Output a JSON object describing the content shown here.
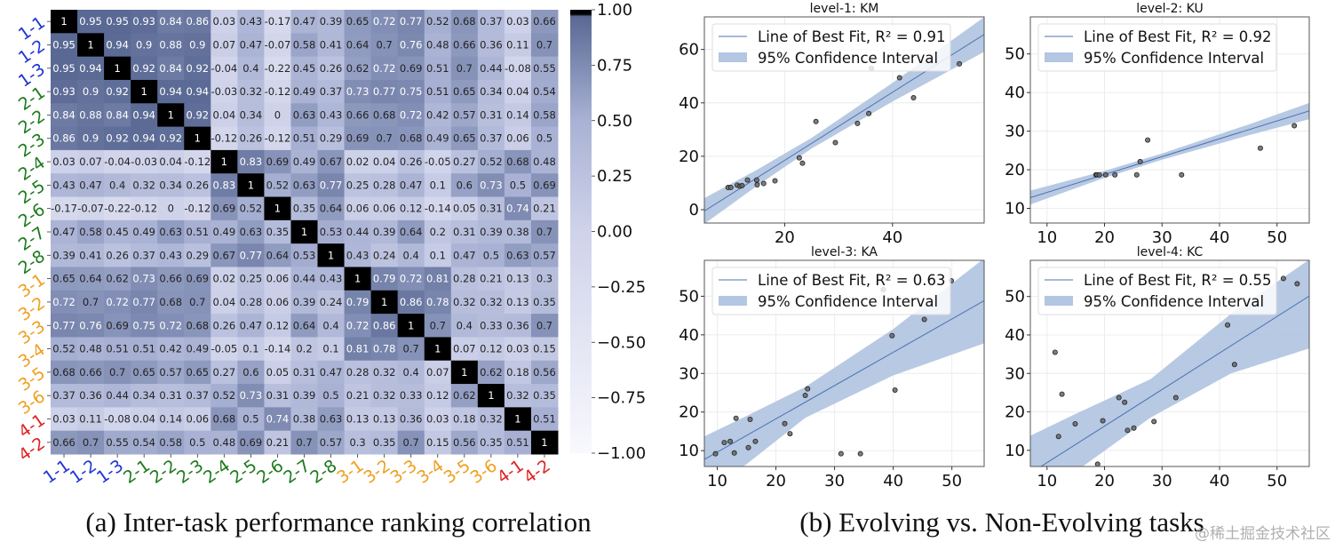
{
  "captions": {
    "a": "(a) Inter-task performance ranking correlation",
    "b": "(b) Evolving vs. Non-Evolving tasks"
  },
  "watermark": "@稀土掘金技术社区",
  "chart_data": [
    {
      "type": "heatmap",
      "labels": [
        "1-1",
        "1-2",
        "1-3",
        "2-1",
        "2-2",
        "2-3",
        "2-4",
        "2-5",
        "2-6",
        "2-7",
        "2-8",
        "3-1",
        "3-2",
        "3-3",
        "3-4",
        "3-5",
        "3-6",
        "4-1",
        "4-2"
      ],
      "label_colors": {
        "1": "#1f35d6",
        "2": "#1e7a1e",
        "3": "#f0a020",
        "4": "#e02424"
      },
      "colorbar": {
        "range": [
          -1,
          1
        ],
        "ticks": [
          "1.00",
          "0.75",
          "0.50",
          "0.25",
          "0.00",
          "−0.25",
          "−0.50",
          "−0.75",
          "−1.00"
        ],
        "tick_values": [
          1,
          0.75,
          0.5,
          0.25,
          0,
          -0.25,
          -0.5,
          -0.75,
          -1
        ]
      },
      "colors": {
        "low": "#f8f8fd",
        "mid": "#cfd3ea",
        "high": "#5a6994",
        "diagonal": "#000000"
      },
      "values": [
        [
          1,
          0.95,
          0.95,
          0.93,
          0.84,
          0.86,
          0.03,
          0.43,
          -0.17,
          0.47,
          0.39,
          0.65,
          0.72,
          0.77,
          0.52,
          0.68,
          0.37,
          0.03,
          0.66
        ],
        [
          0.95,
          1,
          0.94,
          0.9,
          0.88,
          0.9,
          0.07,
          0.47,
          -0.07,
          0.58,
          0.41,
          0.64,
          0.7,
          0.76,
          0.48,
          0.66,
          0.36,
          0.11,
          0.7
        ],
        [
          0.95,
          0.94,
          1,
          0.92,
          0.84,
          0.92,
          -0.04,
          0.4,
          -0.22,
          0.45,
          0.26,
          0.62,
          0.72,
          0.69,
          0.51,
          0.7,
          0.44,
          -0.08,
          0.55
        ],
        [
          0.93,
          0.9,
          0.92,
          1,
          0.94,
          0.94,
          -0.03,
          0.32,
          -0.12,
          0.49,
          0.37,
          0.73,
          0.77,
          0.75,
          0.51,
          0.65,
          0.34,
          0.04,
          0.54
        ],
        [
          0.84,
          0.88,
          0.84,
          0.94,
          1,
          0.92,
          0.04,
          0.34,
          0,
          0.63,
          0.43,
          0.66,
          0.68,
          0.72,
          0.42,
          0.57,
          0.31,
          0.14,
          0.58
        ],
        [
          0.86,
          0.9,
          0.92,
          0.94,
          0.92,
          1,
          -0.12,
          0.26,
          -0.12,
          0.51,
          0.29,
          0.69,
          0.7,
          0.68,
          0.49,
          0.65,
          0.37,
          0.06,
          0.5
        ],
        [
          0.03,
          0.07,
          -0.04,
          -0.03,
          0.04,
          -0.12,
          1,
          0.83,
          0.69,
          0.49,
          0.67,
          0.02,
          0.04,
          0.26,
          -0.05,
          0.27,
          0.52,
          0.68,
          0.48
        ],
        [
          0.43,
          0.47,
          0.4,
          0.32,
          0.34,
          0.26,
          0.83,
          1,
          0.52,
          0.63,
          0.77,
          0.25,
          0.28,
          0.47,
          0.1,
          0.6,
          0.73,
          0.5,
          0.69
        ],
        [
          -0.17,
          -0.07,
          -0.22,
          -0.12,
          0,
          -0.12,
          0.69,
          0.52,
          1,
          0.35,
          0.64,
          0.06,
          0.06,
          0.12,
          -0.14,
          0.05,
          0.31,
          0.74,
          0.21
        ],
        [
          0.47,
          0.58,
          0.45,
          0.49,
          0.63,
          0.51,
          0.49,
          0.63,
          0.35,
          1,
          0.53,
          0.44,
          0.39,
          0.64,
          0.2,
          0.31,
          0.39,
          0.38,
          0.7
        ],
        [
          0.39,
          0.41,
          0.26,
          0.37,
          0.43,
          0.29,
          0.67,
          0.77,
          0.64,
          0.53,
          1,
          0.43,
          0.24,
          0.4,
          0.1,
          0.47,
          0.5,
          0.63,
          0.57
        ],
        [
          0.65,
          0.64,
          0.62,
          0.73,
          0.66,
          0.69,
          0.02,
          0.25,
          0.06,
          0.44,
          0.43,
          1,
          0.79,
          0.72,
          0.81,
          0.28,
          0.21,
          0.13,
          0.3
        ],
        [
          0.72,
          0.7,
          0.72,
          0.77,
          0.68,
          0.7,
          0.04,
          0.28,
          0.06,
          0.39,
          0.24,
          0.79,
          1,
          0.86,
          0.78,
          0.32,
          0.32,
          0.13,
          0.35
        ],
        [
          0.77,
          0.76,
          0.69,
          0.75,
          0.72,
          0.68,
          0.26,
          0.47,
          0.12,
          0.64,
          0.4,
          0.72,
          0.86,
          1,
          0.7,
          0.4,
          0.33,
          0.36,
          0.7
        ],
        [
          0.52,
          0.48,
          0.51,
          0.51,
          0.42,
          0.49,
          -0.05,
          0.1,
          -0.14,
          0.2,
          0.1,
          0.81,
          0.78,
          0.7,
          1,
          0.07,
          0.12,
          0.03,
          0.15
        ],
        [
          0.68,
          0.66,
          0.7,
          0.65,
          0.57,
          0.65,
          0.27,
          0.6,
          0.05,
          0.31,
          0.47,
          0.28,
          0.32,
          0.4,
          0.07,
          1,
          0.62,
          0.18,
          0.56
        ],
        [
          0.37,
          0.36,
          0.44,
          0.34,
          0.31,
          0.37,
          0.52,
          0.73,
          0.31,
          0.39,
          0.5,
          0.21,
          0.32,
          0.33,
          0.12,
          0.62,
          1,
          0.32,
          0.35
        ],
        [
          0.03,
          0.11,
          -0.08,
          0.04,
          0.14,
          0.06,
          0.68,
          0.5,
          0.74,
          0.38,
          0.63,
          0.13,
          0.13,
          0.36,
          0.03,
          0.18,
          0.32,
          1,
          0.51
        ],
        [
          0.66,
          0.7,
          0.55,
          0.54,
          0.58,
          0.5,
          0.48,
          0.69,
          0.21,
          0.7,
          0.57,
          0.3,
          0.35,
          0.7,
          0.15,
          0.56,
          0.35,
          0.51,
          1
        ]
      ]
    },
    {
      "type": "scatter",
      "title": "level-1: KM",
      "xlim": [
        5.1,
        57.0
      ],
      "ylim": [
        -5.0,
        72.2
      ],
      "xticks": [
        20,
        40
      ],
      "yticks": [
        0,
        20,
        40,
        60
      ],
      "grid": true,
      "legend": {
        "placement": "top-left",
        "line_label": "Line of Best Fit, R² = 0.91",
        "band_label": "95% Confidence Interval"
      },
      "r2": 0.91,
      "fit": {
        "slope": 1.274,
        "intercept": -7.0
      },
      "ci": {
        "x": [
          5.1,
          15,
          25,
          40,
          57
        ],
        "lower": [
          -5.3,
          9.1,
          22.9,
          40.5,
          59.1
        ],
        "upper": [
          4.3,
          15.1,
          26.9,
          47.5,
          72.1
        ]
      },
      "x": [
        9.5,
        10.0,
        11.2,
        11.7,
        12.1,
        13.1,
        14.8,
        14.9,
        16.1,
        18.2,
        22.7,
        23.3,
        25.8,
        29.4,
        33.5,
        35.6,
        36.1,
        41.3,
        43.9,
        52.4
      ],
      "y": [
        8.3,
        8.3,
        9.2,
        8.8,
        9.0,
        11.1,
        11.1,
        9.3,
        9.8,
        10.8,
        19.4,
        17.4,
        33.0,
        25.1,
        32.3,
        36.0,
        52.9,
        49.4,
        41.9,
        54.6
      ]
    },
    {
      "type": "scatter",
      "title": "level-2: KU",
      "xlim": [
        7.1,
        55.6
      ],
      "ylim": [
        6.2,
        59.6
      ],
      "xticks": [
        10,
        20,
        30,
        40,
        50
      ],
      "yticks": [
        10,
        20,
        30,
        40,
        50
      ],
      "grid": true,
      "legend": {
        "placement": "top-left",
        "line_label": "Line of Best Fit, R² = 0.92",
        "band_label": "95% Confidence Interval"
      },
      "r2": 0.92,
      "fit": {
        "slope": 0.463,
        "intercept": 9.5
      },
      "ci": {
        "x": [
          7.1,
          20,
          30,
          45,
          55.6
        ],
        "lower": [
          11.0,
          17.9,
          22.6,
          28.9,
          33.1
        ],
        "upper": [
          14.6,
          19.7,
          24.2,
          31.7,
          37.3
        ]
      },
      "x": [
        18.5,
        18.7,
        19.1,
        20.2,
        21.8,
        25.6,
        26.2,
        27.5,
        33.4,
        47.1,
        53.0
      ],
      "y": [
        18.7,
        18.7,
        18.7,
        18.7,
        18.7,
        18.7,
        22.1,
        27.7,
        18.7,
        25.6,
        31.4
      ]
    },
    {
      "type": "scatter",
      "title": "level-3: KA",
      "xlim": [
        7.8,
        55.5
      ],
      "ylim": [
        5.9,
        59.3
      ],
      "xticks": [
        10,
        20,
        30,
        40,
        50
      ],
      "yticks": [
        10,
        20,
        30,
        40,
        50
      ],
      "grid": true,
      "legend": {
        "placement": "top-left",
        "line_label": "Line of Best Fit, R² = 0.63",
        "band_label": "95% Confidence Interval"
      },
      "r2": 0.63,
      "fit": {
        "slope": 0.862,
        "intercept": 1.0
      },
      "ci": {
        "x": [
          7.8,
          15,
          25,
          40,
          55.5
        ],
        "lower": [
          -0.5,
          6.5,
          18.5,
          29.5,
          37.8
        ],
        "upper": [
          13.7,
          19.0,
          26.5,
          41.5,
          59.8
        ]
      },
      "x": [
        9.7,
        11.2,
        12.2,
        12.9,
        13.2,
        15.3,
        15.6,
        16.5,
        21.5,
        22.4,
        25.0,
        25.4,
        31.1,
        34.4,
        38.3,
        39.8,
        40.3,
        45.3,
        49.9
      ],
      "y": [
        9.2,
        12.1,
        12.4,
        9.4,
        18.4,
        10.8,
        18.1,
        12.4,
        17.0,
        14.4,
        24.3,
        26.0,
        9.2,
        9.2,
        51.7,
        39.8,
        25.7,
        44.0,
        54.0
      ]
    },
    {
      "type": "scatter",
      "title": "level-4: KC",
      "xlim": [
        7.1,
        55.6
      ],
      "ylim": [
        5.8,
        59.4
      ],
      "xticks": [
        10,
        20,
        30,
        40,
        50
      ],
      "yticks": [
        10,
        20,
        30,
        40,
        50
      ],
      "grid": true,
      "legend": {
        "placement": "top-left",
        "line_label": "Line of Best Fit, R² = 0.55",
        "band_label": "95% Confidence Interval"
      },
      "r2": 0.55,
      "fit": {
        "slope": 0.95,
        "intercept": -2.7
      },
      "ci": {
        "x": [
          7.1,
          15,
          28,
          42,
          55.6
        ],
        "lower": [
          -5.0,
          4.5,
          18.5,
          30.0,
          36.5
        ],
        "upper": [
          13.8,
          19.5,
          28.5,
          45.5,
          59.6
        ]
      },
      "x": [
        11.4,
        12.0,
        12.6,
        14.9,
        18.8,
        19.7,
        22.5,
        23.5,
        24.0,
        25.1,
        28.6,
        32.4,
        41.4,
        42.6,
        51.1,
        53.5
      ],
      "y": [
        35.5,
        13.6,
        24.6,
        16.9,
        6.4,
        17.7,
        23.7,
        22.5,
        15.2,
        15.8,
        17.5,
        23.7,
        42.6,
        32.3,
        54.7,
        53.3
      ]
    }
  ]
}
